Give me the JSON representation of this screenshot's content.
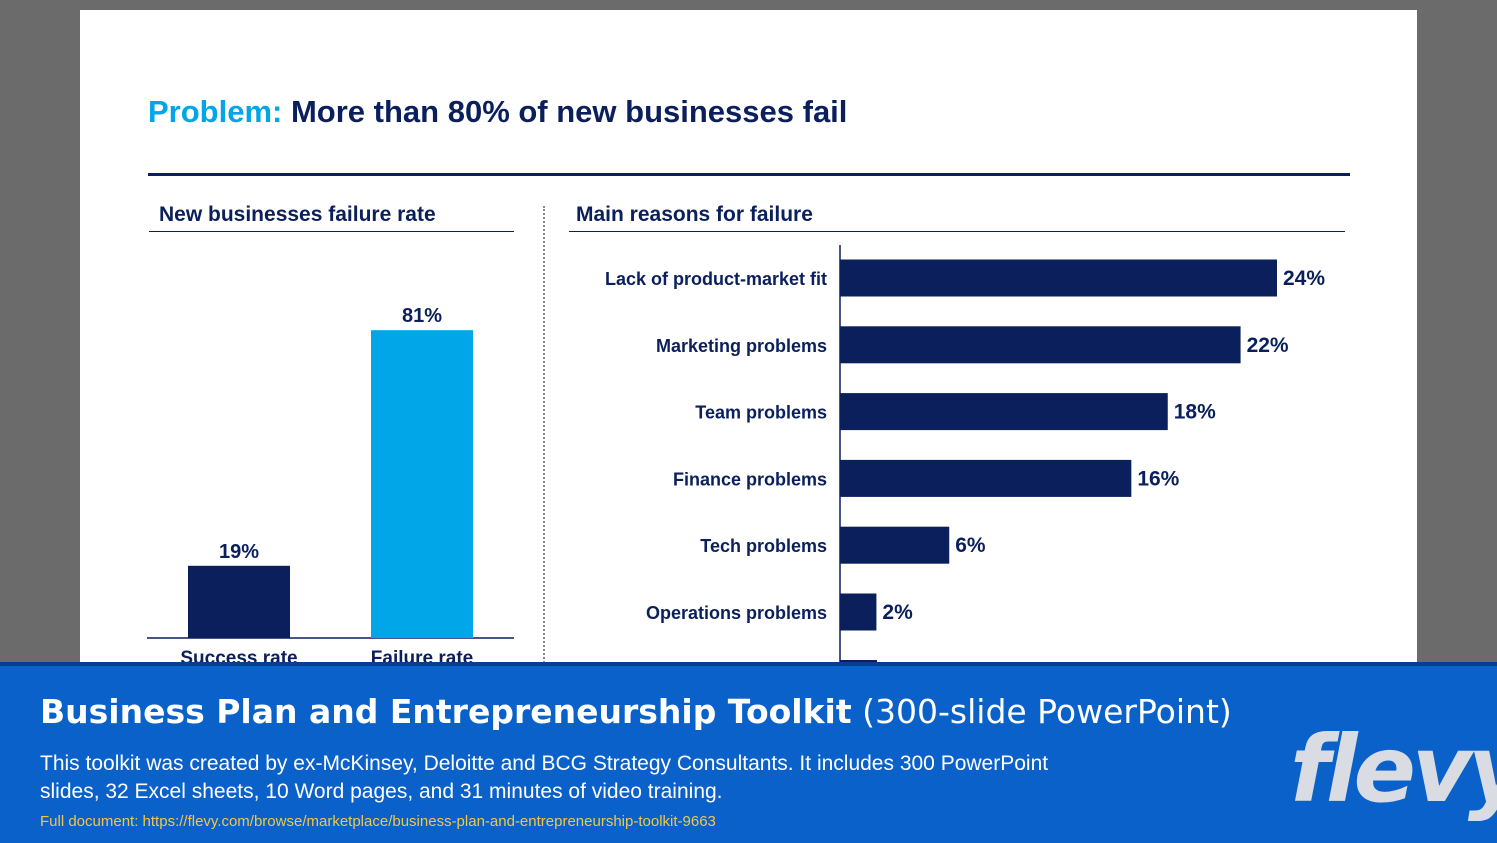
{
  "slide": {
    "title_prefix": "Problem:",
    "title_rest": "More than 80% of new businesses fail"
  },
  "left_panel": {
    "heading": "New businesses failure rate"
  },
  "right_panel": {
    "heading": "Main reasons for failure"
  },
  "colors": {
    "navy": "#0a1f5c",
    "cyan": "#00a6e8",
    "banner_blue": "#0a61c9",
    "link_gold": "#f3c64b"
  },
  "chart_data": [
    {
      "type": "bar",
      "title": "New businesses failure rate",
      "categories": [
        "Success rate",
        "Failure rate"
      ],
      "values": [
        19,
        81
      ],
      "labels": [
        "19%",
        "81%"
      ],
      "ylim": [
        0,
        100
      ],
      "colors": [
        "#0a1f5c",
        "#00a6e8"
      ]
    },
    {
      "type": "bar",
      "orientation": "horizontal",
      "title": "Main reasons for failure",
      "categories": [
        "Lack of product-market fit",
        "Marketing problems",
        "Team problems",
        "Finance problems",
        "Tech problems",
        "Operations problems"
      ],
      "values": [
        24,
        22,
        18,
        16,
        6,
        2
      ],
      "labels": [
        "24%",
        "22%",
        "18%",
        "16%",
        "6%",
        "2%"
      ],
      "xlim": [
        0,
        24
      ],
      "color": "#0a1f5c"
    }
  ],
  "banner": {
    "title_bold": "Business Plan and Entrepreneurship Toolkit",
    "title_rest": "(300-slide PowerPoint)",
    "description": "This toolkit was created by ex-McKinsey, Deloitte and BCG Strategy Consultants. It includes 300 PowerPoint slides, 32 Excel sheets, 10 Word pages, and 31 minutes of video training.",
    "link": "Full document: https://flevy.com/browse/marketplace/business-plan-and-entrepreneurship-toolkit-9663",
    "logo": "flevy"
  }
}
